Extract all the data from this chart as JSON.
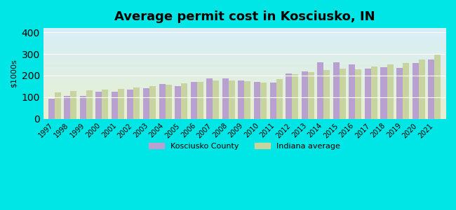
{
  "title": "Average permit cost in Kosciusko, IN",
  "ylabel": "$1000s",
  "years": [
    1997,
    1998,
    1999,
    2000,
    2001,
    2002,
    2003,
    2004,
    2005,
    2006,
    2007,
    2008,
    2009,
    2010,
    2011,
    2012,
    2013,
    2014,
    2015,
    2016,
    2017,
    2018,
    2019,
    2020,
    2021
  ],
  "kosciusko": [
    92,
    107,
    105,
    125,
    125,
    135,
    140,
    160,
    152,
    170,
    188,
    187,
    178,
    172,
    167,
    210,
    218,
    260,
    260,
    250,
    233,
    240,
    237,
    257,
    273
  ],
  "indiana": [
    122,
    127,
    133,
    135,
    138,
    145,
    152,
    158,
    165,
    170,
    177,
    177,
    173,
    168,
    182,
    205,
    215,
    227,
    233,
    230,
    242,
    250,
    258,
    273,
    300
  ],
  "kosciusko_color": "#b8a0d0",
  "indiana_color": "#c8d4a0",
  "bg_outer": "#00e5e5",
  "bg_plot_top": "#d8eef8",
  "bg_plot_bottom": "#e8f0d0",
  "ylim": [
    0,
    420
  ],
  "yticks": [
    0,
    100,
    200,
    300,
    400
  ],
  "legend_kosciusko": "Kosciusko County",
  "legend_indiana": "Indiana average"
}
